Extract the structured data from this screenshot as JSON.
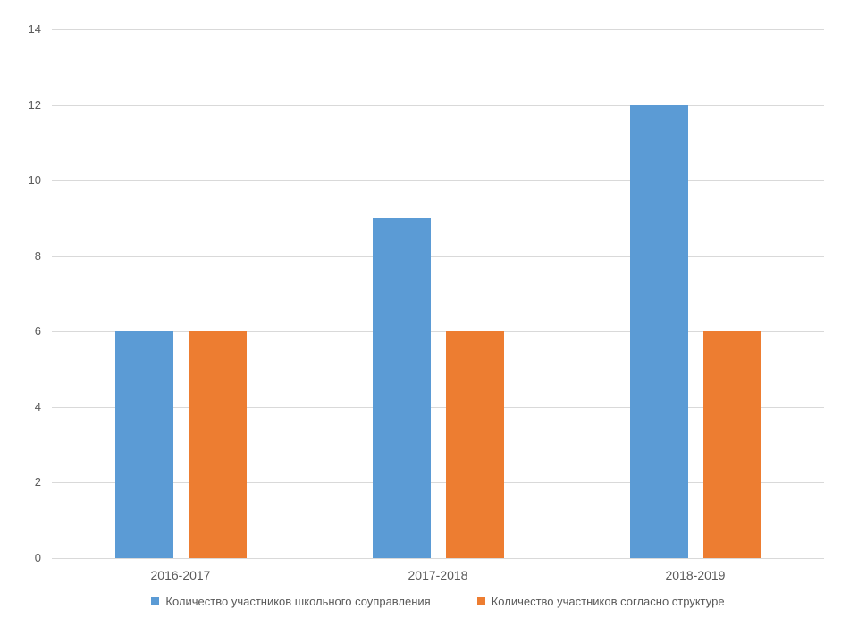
{
  "chart_data": {
    "type": "bar",
    "categories": [
      "2016-2017",
      "2017-2018",
      "2018-2019"
    ],
    "series": [
      {
        "name": "Количество участников школьного соуправления",
        "color": "#5b9bd5",
        "values": [
          6,
          9,
          12
        ]
      },
      {
        "name": "Количество участников согласно структуре",
        "color": "#ed7d31",
        "values": [
          6,
          6,
          6
        ]
      }
    ],
    "title": "",
    "xlabel": "",
    "ylabel": "",
    "ylim": [
      0,
      14
    ],
    "ytick_step": 2,
    "yticks": [
      "0",
      "2",
      "4",
      "6",
      "8",
      "10",
      "12",
      "14"
    ],
    "grid": true,
    "legend_position": "bottom",
    "colors": {
      "gridline": "#d9d9d9",
      "axis_text": "#595959",
      "background": "#ffffff"
    }
  }
}
